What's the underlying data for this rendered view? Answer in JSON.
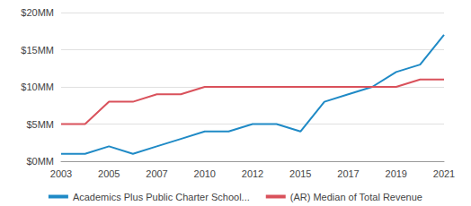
{
  "chart_data": {
    "type": "line",
    "categories": [
      "2003",
      null,
      "2005",
      null,
      "2007",
      null,
      "2010",
      null,
      "2012",
      null,
      "2015",
      null,
      "2017",
      null,
      "2019",
      null,
      "2021"
    ],
    "series": [
      {
        "name": "Academics Plus Public Charter School...",
        "color": "#1f8ac6",
        "values": [
          1,
          1,
          2,
          1,
          2,
          3,
          4,
          4,
          5,
          5,
          4,
          8,
          9,
          10,
          12,
          13,
          17
        ]
      },
      {
        "name": "(AR) Median of Total Revenue",
        "color": "#d9515b",
        "values": [
          5,
          5,
          8,
          8,
          9,
          9,
          10,
          10,
          10,
          10,
          10,
          10,
          10,
          10,
          10,
          11,
          11
        ]
      }
    ],
    "ylim": [
      0,
      20
    ],
    "yticks": [
      {
        "value": 0,
        "label": "$0MM"
      },
      {
        "value": 5,
        "label": "$5MM"
      },
      {
        "value": 10,
        "label": "$10MM"
      },
      {
        "value": 15,
        "label": "$15MM"
      },
      {
        "value": 20,
        "label": "$20MM"
      }
    ],
    "grid": true,
    "legend": "bottom"
  }
}
